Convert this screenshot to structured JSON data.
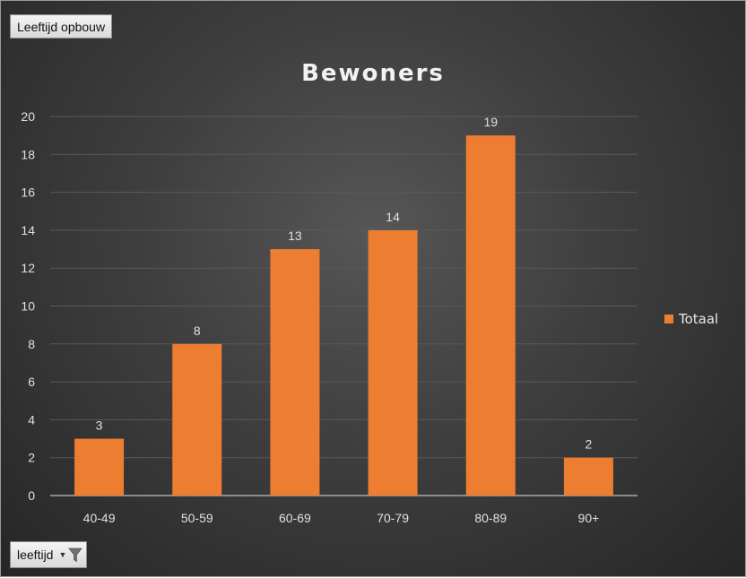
{
  "field_buttons": {
    "top_label": "Leeftijd opbouw",
    "bottom_label": "leeftijd",
    "bottom_icons": [
      "dropdown-arrow-icon",
      "filter-funnel-icon"
    ]
  },
  "colors": {
    "bar": "#ed7d31",
    "text": "#e0e0e0",
    "gridline": "#595959",
    "axis": "#bfbfbf"
  },
  "chart_data": {
    "type": "bar",
    "title": "Bewoners",
    "xlabel": "",
    "ylabel": "",
    "categories": [
      "40-49",
      "50-59",
      "60-69",
      "70-79",
      "80-89",
      "90+"
    ],
    "series": [
      {
        "name": "Totaal",
        "values": [
          3,
          8,
          13,
          14,
          19,
          2
        ]
      }
    ],
    "ylim": [
      0,
      20
    ],
    "yticks": [
      0,
      2,
      4,
      6,
      8,
      10,
      12,
      14,
      16,
      18,
      20
    ],
    "data_labels": true,
    "grid": true,
    "legend": "right"
  }
}
